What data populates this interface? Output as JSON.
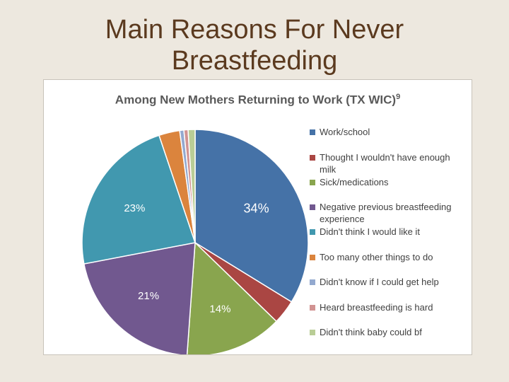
{
  "slide": {
    "title_line1": "Main Reasons For Never",
    "title_line2": "Breastfeeding"
  },
  "chart_data": {
    "type": "pie",
    "title": "Among New Mothers Returning to Work (TX WIC)",
    "title_superscript": "9",
    "legend_position": "right",
    "slices": [
      {
        "label": "Work/school",
        "value": 34,
        "data_label": "34%",
        "color": "#4572a7"
      },
      {
        "label": "Thought I wouldn't have enough milk",
        "value": 3.5,
        "data_label": "",
        "color": "#aa4643"
      },
      {
        "label": "Sick/medications",
        "value": 14,
        "data_label": "14%",
        "color": "#89a54e"
      },
      {
        "label": "Negative previous breastfeeding experience",
        "value": 21,
        "data_label": "21%",
        "color": "#71588f"
      },
      {
        "label": "Didn't think I would like it",
        "value": 23,
        "data_label": "23%",
        "color": "#4198af"
      },
      {
        "label": "Too many other things to do",
        "value": 3,
        "data_label": "",
        "color": "#db843d"
      },
      {
        "label": "Didn't know if I could get help",
        "value": 0.6,
        "data_label": "",
        "color": "#93a9cf"
      },
      {
        "label": "Heard breastfeeding is hard",
        "value": 0.6,
        "data_label": "",
        "color": "#d19392"
      },
      {
        "label": "Didn't think baby could bf",
        "value": 1.0,
        "data_label": "",
        "color": "#b9cd96"
      }
    ]
  }
}
